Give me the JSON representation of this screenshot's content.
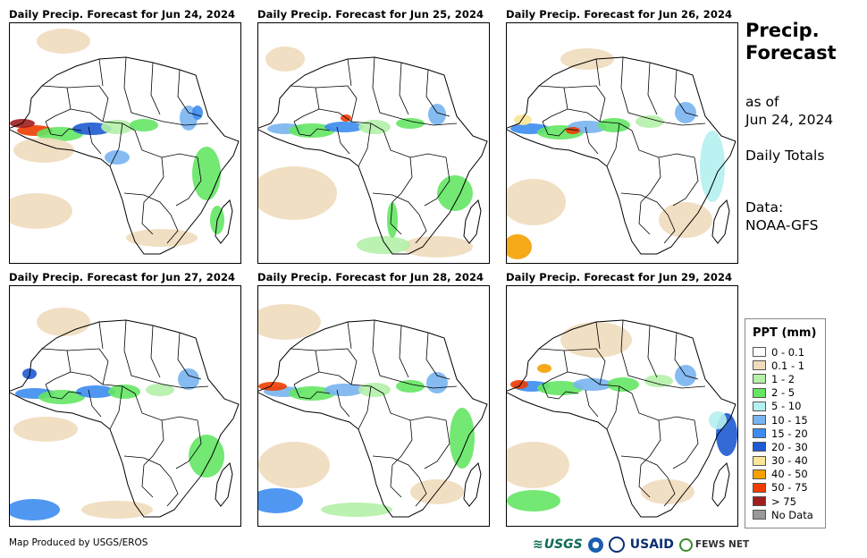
{
  "panels": [
    {
      "title": "Daily Precip. Forecast for Jun 24, 2024"
    },
    {
      "title": "Daily Precip. Forecast for Jun 25, 2024"
    },
    {
      "title": "Daily Precip. Forecast for Jun 26, 2024"
    },
    {
      "title": "Daily Precip. Forecast for Jun 27, 2024"
    },
    {
      "title": "Daily Precip. Forecast for Jun 28, 2024"
    },
    {
      "title": "Daily Precip. Forecast for Jun 29, 2024"
    }
  ],
  "side": {
    "title_line1": "Precip.",
    "title_line2": "Forecast",
    "asof_line1": "as of",
    "asof_line2": "Jun 24, 2024",
    "totals": "Daily Totals",
    "data_line1": "Data:",
    "data_line2": "NOAA-GFS"
  },
  "legend": {
    "title": "PPT (mm)",
    "items": [
      {
        "label": "0 - 0.1",
        "color": "#ffffff"
      },
      {
        "label": "0.1 - 1",
        "color": "#f0dcbc"
      },
      {
        "label": "1 - 2",
        "color": "#b4f0a8"
      },
      {
        "label": "2 - 5",
        "color": "#64e664"
      },
      {
        "label": "5 - 10",
        "color": "#b4f0f0"
      },
      {
        "label": "10 - 15",
        "color": "#78b4f0"
      },
      {
        "label": "15 - 20",
        "color": "#3c8cf0"
      },
      {
        "label": "20 - 30",
        "color": "#1e5ad2"
      },
      {
        "label": "30 - 40",
        "color": "#fae696"
      },
      {
        "label": "40 - 50",
        "color": "#f5a000"
      },
      {
        "label": "50 - 75",
        "color": "#f03c00"
      },
      {
        "label": "> 75",
        "color": "#a01e1e"
      },
      {
        "label": "No Data",
        "color": "#999999"
      }
    ]
  },
  "footer": {
    "credit": "Map Produced by USGS/EROS"
  },
  "logos": {
    "usgs": "USGS",
    "usaid": "USAID",
    "fews": "FEWS NET"
  }
}
